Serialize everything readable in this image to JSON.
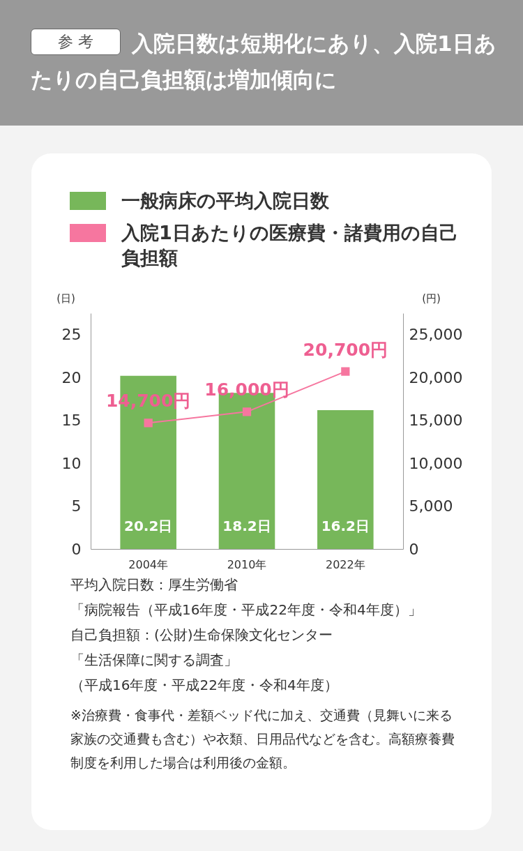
{
  "chart_data": {
    "type": "bar",
    "title": "入院日数は短期化にあり、入院1日あたりの自己負担額は増加傾向に",
    "subtitle": "参 考",
    "categories": [
      "2004年",
      "2010年",
      "2022年"
    ],
    "series": [
      {
        "name": "一般病床の平均入院日数",
        "color": "#77b75a",
        "values": [
          20.2,
          18.2,
          16.2
        ],
        "value_labels": [
          "20.2日",
          "18.2日",
          "16.2日"
        ]
      },
      {
        "name": "入院1日あたりの医療費・諸費用の自己負担額",
        "type": "line",
        "axis": "y2",
        "color": "#f6769f",
        "values": [
          14700,
          16000,
          20700
        ],
        "value_labels": [
          "14,700円",
          "16,000円",
          "20,700円"
        ]
      }
    ],
    "ylabel": "(日)",
    "y2label": "(円)",
    "ylim": [
      0,
      27.5
    ],
    "yticks": [
      0,
      5,
      10,
      15,
      20,
      25
    ],
    "y2lim": [
      0,
      27500
    ],
    "y2ticks": [
      0,
      {
        "value": 5000,
        "label": "5,000"
      },
      {
        "value": 10000,
        "label": "10,000"
      },
      {
        "value": 15000,
        "label": "15,000"
      },
      {
        "value": 20000,
        "label": "20,000"
      },
      {
        "value": 25000,
        "label": "25,000"
      }
    ],
    "grid": false,
    "legend": "top",
    "marker": "square",
    "line_style": "solid",
    "annotations": [
      "平均入院日数：厚生労働省",
      "「病院報告（平成16年度・平成22年度・令和4年度）」",
      "自己負担額：(公財)生命保険文化センター",
      "「生活保障に関する調査」",
      "（平成16年度・平成22年度・令和4年度）",
      "※治療費・食事代・差額ベッド代に加え、交通費（見舞いに来る家族の交通費も含む）や衣類、日用品代などを含む。高額療養費制度を利用した場合は利用後の金額。"
    ]
  }
}
